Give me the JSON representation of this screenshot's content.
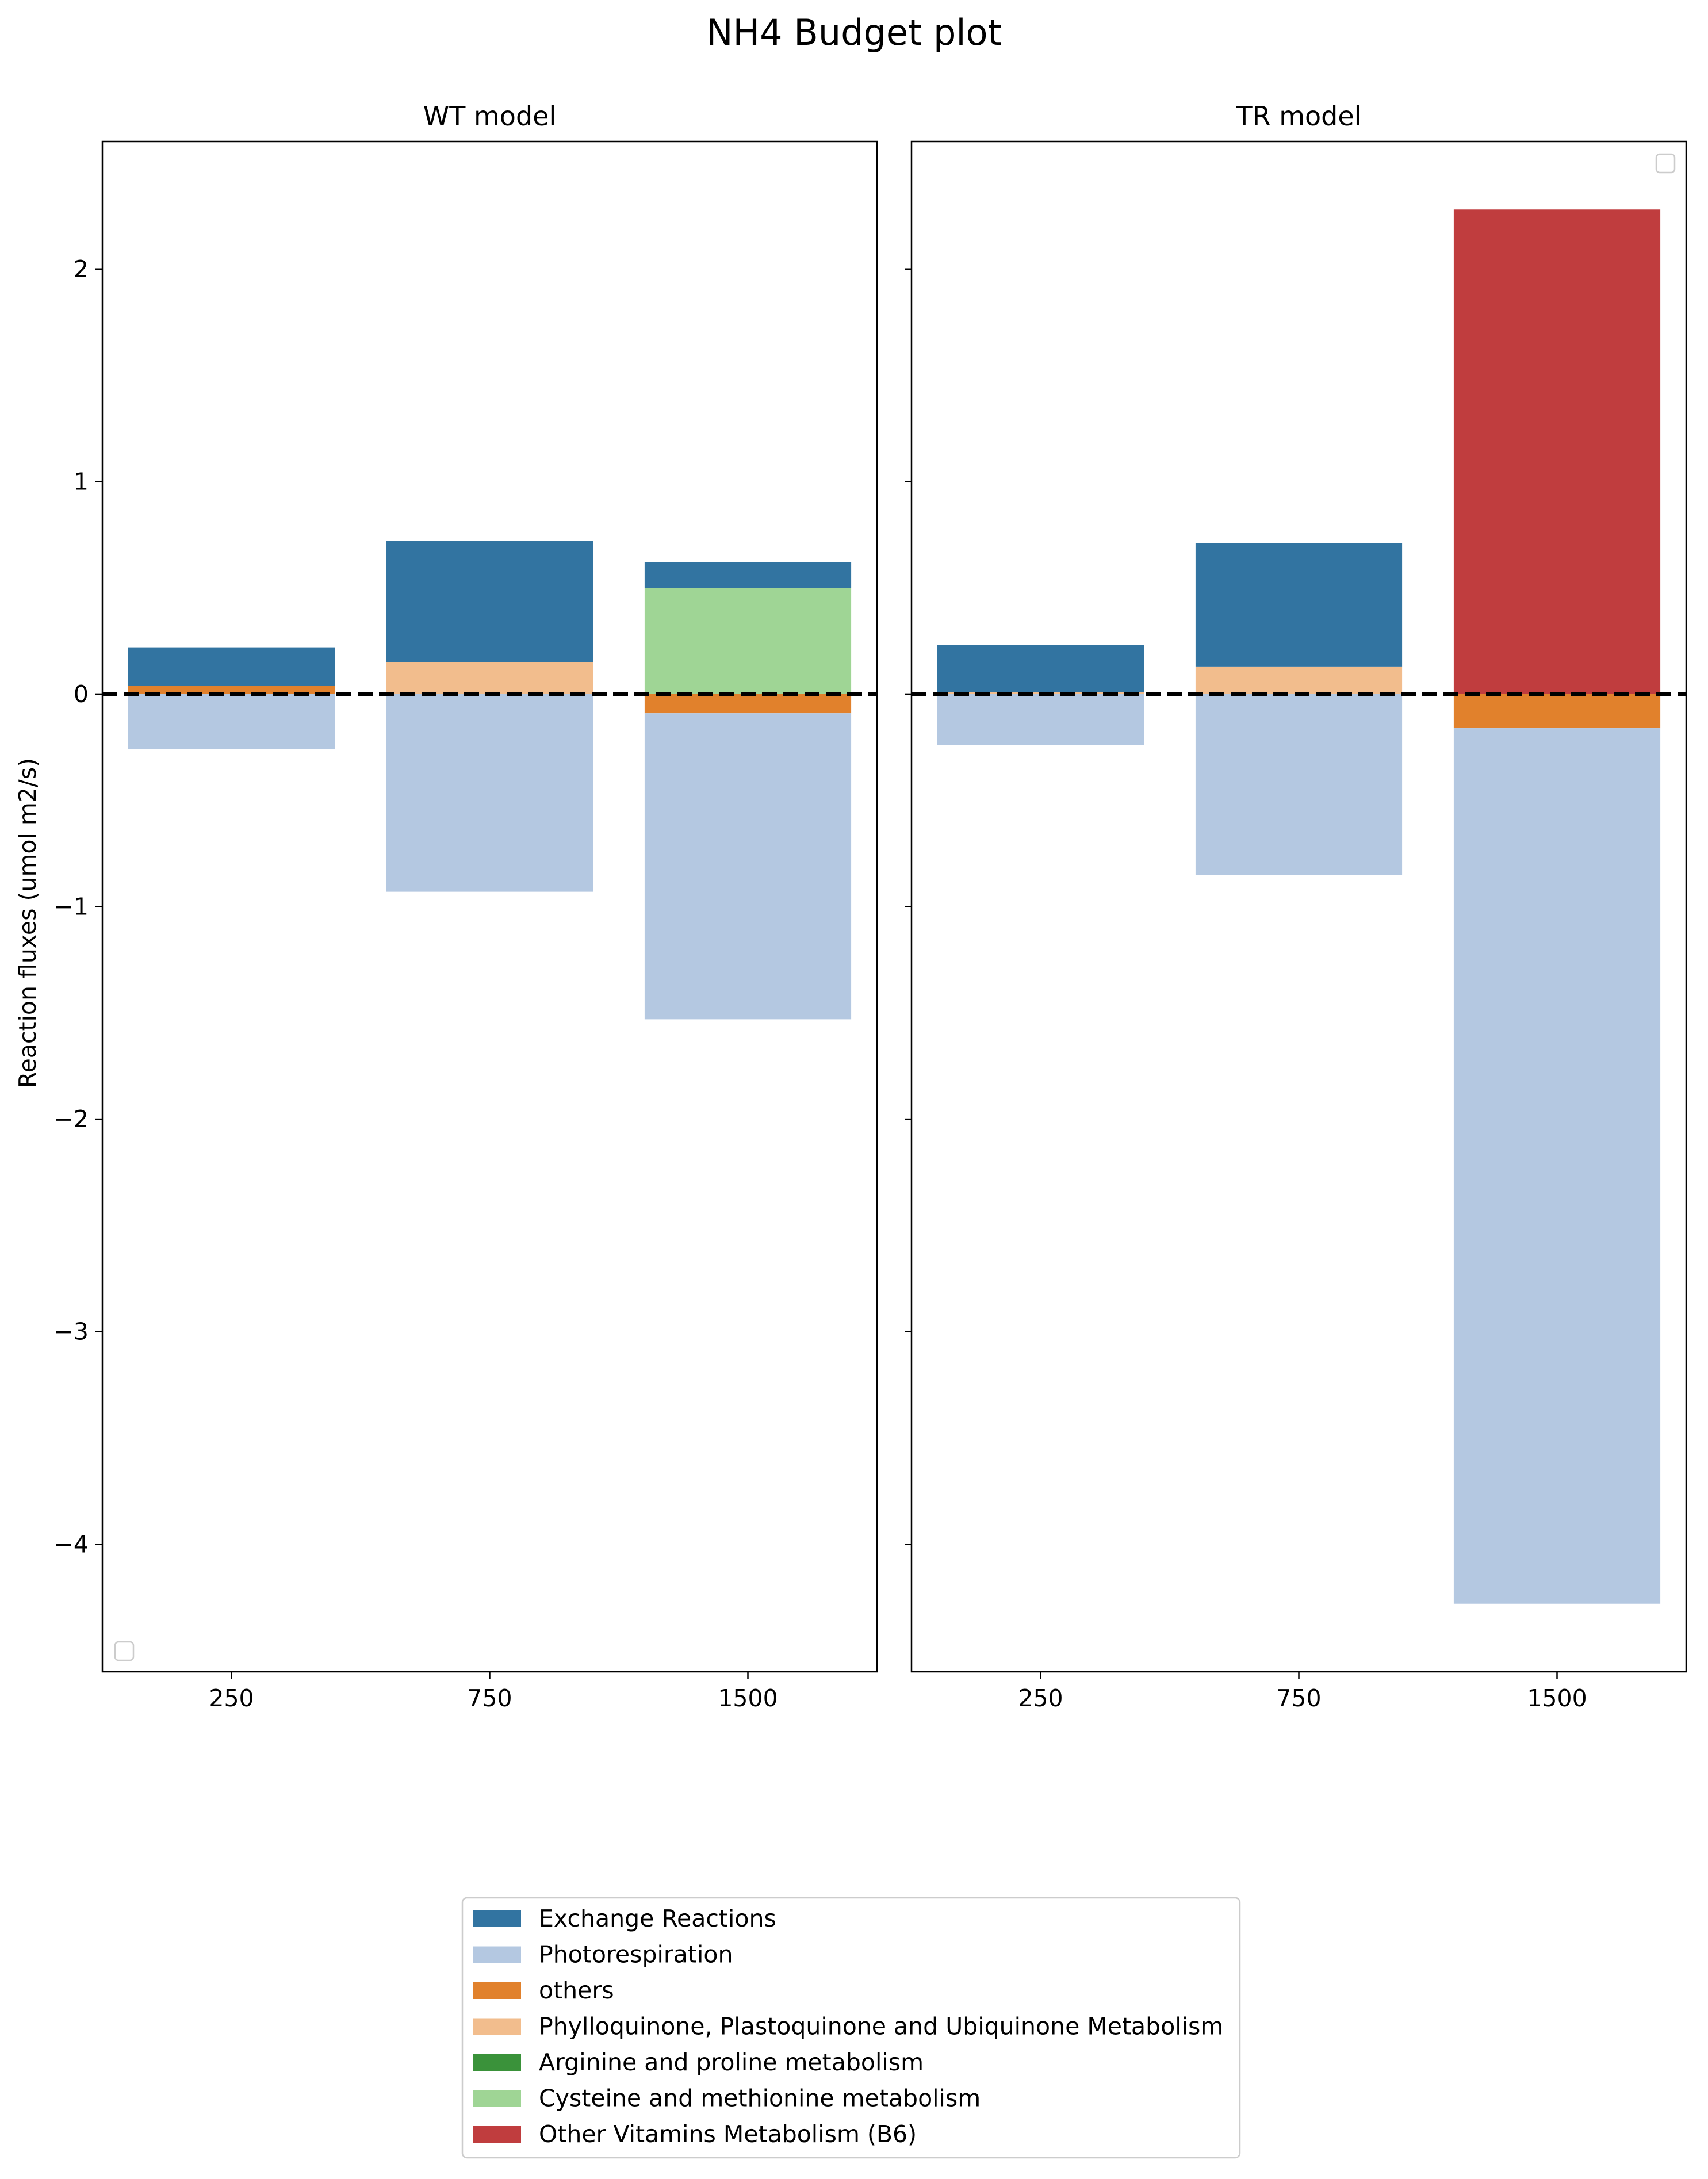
{
  "chart_data": {
    "type": "bar",
    "stacked": true,
    "title": "NH4 Budget plot",
    "ylabel": "Reaction fluxes (umol m2/s)",
    "ylim": [
      -4.6,
      2.6
    ],
    "yticks": [
      2,
      1,
      0,
      -1,
      -2,
      -3,
      -4
    ],
    "ytick_labels": [
      "2",
      "1",
      "0",
      "−1",
      "−2",
      "−3",
      "−4"
    ],
    "categories": [
      "250",
      "750",
      "1500"
    ],
    "reference_line": {
      "y": 0,
      "style": "dashed",
      "color": "#000000"
    },
    "legend_placement": "bottom-center",
    "series": [
      {
        "name": "Exchange Reactions",
        "color": "#3274a1"
      },
      {
        "name": "Photorespiration",
        "color": "#b4c8e1"
      },
      {
        "name": "others",
        "color": "#e1812c"
      },
      {
        "name": "Phylloquinone, Plastoquinone and Ubiquinone Metabolism",
        "color": "#f2bd8d"
      },
      {
        "name": "Arginine and proline metabolism",
        "color": "#3a923a"
      },
      {
        "name": "Cysteine and methionine metabolism",
        "color": "#9fd595"
      },
      {
        "name": "Other Vitamins Metabolism (B6)",
        "color": "#c03d3e"
      }
    ],
    "panels": [
      {
        "subtitle": "WT model",
        "bars": [
          {
            "category": "250",
            "segments": [
              {
                "series": "others",
                "from": 0,
                "to": 0.04
              },
              {
                "series": "Exchange Reactions",
                "from": 0.04,
                "to": 0.22
              },
              {
                "series": "Photorespiration",
                "from": -0.26,
                "to": 0
              }
            ]
          },
          {
            "category": "750",
            "segments": [
              {
                "series": "Phylloquinone, Plastoquinone and Ubiquinone Metabolism",
                "from": 0,
                "to": 0.15
              },
              {
                "series": "Exchange Reactions",
                "from": 0.15,
                "to": 0.72
              },
              {
                "series": "Photorespiration",
                "from": -0.93,
                "to": 0
              }
            ]
          },
          {
            "category": "1500",
            "segments": [
              {
                "series": "Cysteine and methionine metabolism",
                "from": 0,
                "to": 0.5
              },
              {
                "series": "Exchange Reactions",
                "from": 0.5,
                "to": 0.62
              },
              {
                "series": "others",
                "from": -0.09,
                "to": 0
              },
              {
                "series": "Photorespiration",
                "from": -1.53,
                "to": -0.09
              }
            ]
          }
        ]
      },
      {
        "subtitle": "TR model",
        "bars": [
          {
            "category": "250",
            "segments": [
              {
                "series": "Phylloquinone, Plastoquinone and Ubiquinone Metabolism",
                "from": 0,
                "to": 0.01
              },
              {
                "series": "Exchange Reactions",
                "from": 0.01,
                "to": 0.23
              },
              {
                "series": "Photorespiration",
                "from": -0.24,
                "to": 0
              }
            ]
          },
          {
            "category": "750",
            "segments": [
              {
                "series": "Phylloquinone, Plastoquinone and Ubiquinone Metabolism",
                "from": 0,
                "to": 0.13
              },
              {
                "series": "Exchange Reactions",
                "from": 0.13,
                "to": 0.71
              },
              {
                "series": "Photorespiration",
                "from": -0.85,
                "to": 0
              }
            ]
          },
          {
            "category": "1500",
            "segments": [
              {
                "series": "Other Vitamins Metabolism (B6)",
                "from": 0,
                "to": 2.28
              },
              {
                "series": "others",
                "from": -0.16,
                "to": 0
              },
              {
                "series": "Photorespiration",
                "from": -4.28,
                "to": -0.16
              }
            ]
          }
        ]
      }
    ]
  }
}
